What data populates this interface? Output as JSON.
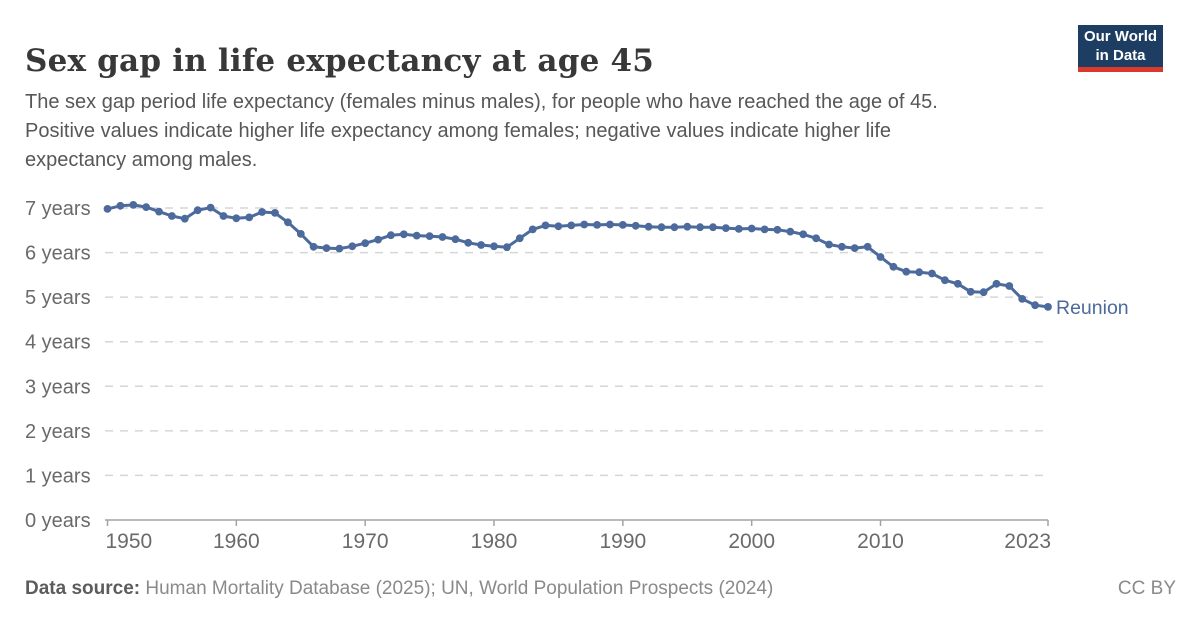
{
  "header": {
    "title": "Sex gap in life expectancy at age 45",
    "logo": {
      "line1": "Our World",
      "line2": "in Data",
      "bg_color": "#1d3d63",
      "accent_color": "#d93a2d"
    }
  },
  "subtitle": {
    "lines": [
      "The sex gap period life expectancy (females minus males), for people who have reached the age of 45.",
      "Positive values indicate higher life expectancy among females; negative values indicate higher life",
      "expectancy among males."
    ]
  },
  "chart_data": {
    "type": "line",
    "title": "Sex gap in life expectancy at age 45",
    "xlabel": "",
    "ylabel": "",
    "xlim": [
      1950,
      2023
    ],
    "ylim": [
      0,
      7.3
    ],
    "grid": "horizontal-dashed",
    "legend_position": "end-of-line-label",
    "line_color": "#4c6a9c",
    "grid_color": "#d6d6d6",
    "axis_color": "#a3a3a3",
    "tick_label_color": "#6a6a6a",
    "yticks": [
      {
        "value": 0,
        "label": "0 years"
      },
      {
        "value": 1,
        "label": "1 years"
      },
      {
        "value": 2,
        "label": "2 years"
      },
      {
        "value": 3,
        "label": "3 years"
      },
      {
        "value": 4,
        "label": "4 years"
      },
      {
        "value": 5,
        "label": "5 years"
      },
      {
        "value": 6,
        "label": "6 years"
      },
      {
        "value": 7,
        "label": "7 years"
      }
    ],
    "xticks": [
      {
        "value": 1950,
        "label": "1950"
      },
      {
        "value": 1960,
        "label": "1960"
      },
      {
        "value": 1970,
        "label": "1970"
      },
      {
        "value": 1980,
        "label": "1980"
      },
      {
        "value": 1990,
        "label": "1990"
      },
      {
        "value": 2000,
        "label": "2000"
      },
      {
        "value": 2010,
        "label": "2010"
      },
      {
        "value": 2023,
        "label": "2023"
      }
    ],
    "x": [
      1950,
      1951,
      1952,
      1953,
      1954,
      1955,
      1956,
      1957,
      1958,
      1959,
      1960,
      1961,
      1962,
      1963,
      1964,
      1965,
      1966,
      1967,
      1968,
      1969,
      1970,
      1971,
      1972,
      1973,
      1974,
      1975,
      1976,
      1977,
      1978,
      1979,
      1980,
      1981,
      1982,
      1983,
      1984,
      1985,
      1986,
      1987,
      1988,
      1989,
      1990,
      1991,
      1992,
      1993,
      1994,
      1995,
      1996,
      1997,
      1998,
      1999,
      2000,
      2001,
      2002,
      2003,
      2004,
      2005,
      2006,
      2007,
      2008,
      2009,
      2010,
      2011,
      2012,
      2013,
      2014,
      2015,
      2016,
      2017,
      2018,
      2019,
      2020,
      2021,
      2022,
      2023
    ],
    "series": [
      {
        "name": "Reunion",
        "color": "#4c6a9c",
        "values": [
          6.98,
          7.05,
          7.07,
          7.02,
          6.92,
          6.82,
          6.76,
          6.95,
          7.01,
          6.82,
          6.77,
          6.79,
          6.91,
          6.89,
          6.68,
          6.42,
          6.13,
          6.1,
          6.09,
          6.14,
          6.21,
          6.29,
          6.39,
          6.41,
          6.38,
          6.37,
          6.35,
          6.3,
          6.22,
          6.17,
          6.14,
          6.12,
          6.32,
          6.52,
          6.61,
          6.59,
          6.61,
          6.63,
          6.62,
          6.63,
          6.62,
          6.6,
          6.58,
          6.57,
          6.57,
          6.58,
          6.57,
          6.57,
          6.55,
          6.53,
          6.54,
          6.52,
          6.51,
          6.47,
          6.41,
          6.32,
          6.18,
          6.13,
          6.1,
          6.13,
          5.9,
          5.68,
          5.57,
          5.56,
          5.53,
          5.38,
          5.3,
          5.12,
          5.11,
          5.3,
          5.25,
          4.96,
          4.82,
          4.78
        ]
      }
    ]
  },
  "footer": {
    "source_label": "Data source:",
    "source_text": " Human Mortality Database (2025); UN, World Population Prospects (2024)",
    "license": "CC BY"
  }
}
